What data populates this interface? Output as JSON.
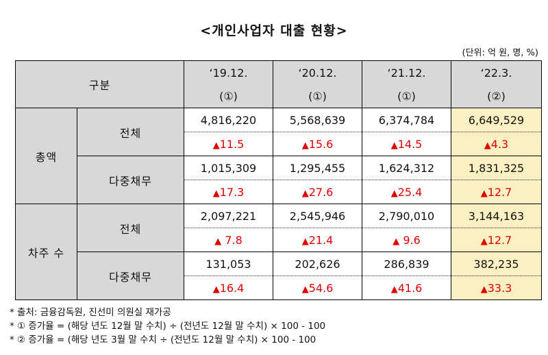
{
  "title": "<개인사업자 대출 현황>",
  "unit": "(단위: 억 원, 명, %)",
  "header": {
    "category": "구분",
    "columns": [
      {
        "year": "‘19.12.",
        "mark": "(①)"
      },
      {
        "year": "‘20.12.",
        "mark": "(①)"
      },
      {
        "year": "‘21.12.",
        "mark": "(①)"
      },
      {
        "year": "‘22.3.",
        "mark": "(②)"
      }
    ]
  },
  "groups": [
    {
      "label": "총액",
      "rows": [
        {
          "label": "전체",
          "values": [
            "4,816,220",
            "5,568,639",
            "6,374,784",
            "6,649,529"
          ],
          "rates": [
            "11.5",
            "15.6",
            "14.5",
            "4.3"
          ]
        },
        {
          "label": "다중채무",
          "values": [
            "1,015,309",
            "1,295,455",
            "1,624,312",
            "1,831,325"
          ],
          "rates": [
            "17.3",
            "27.6",
            "25.4",
            "12.7"
          ]
        }
      ]
    },
    {
      "label": "차주 수",
      "rows": [
        {
          "label": "전체",
          "values": [
            "2,097,221",
            "2,545,946",
            "2,790,010",
            "3,144,163"
          ],
          "rates": [
            " 7.8",
            "21.4",
            " 9.6",
            "12.7"
          ]
        },
        {
          "label": "다중채무",
          "values": [
            "131,053",
            "202,626",
            "286,839",
            "382,235"
          ],
          "rates": [
            "16.4",
            "54.6",
            "41.6",
            "33.3"
          ]
        }
      ]
    }
  ],
  "increase_symbol": "▲",
  "notes": [
    "* 출처: 금융감독원, 진선미 의원실 재가공",
    "* ① 증가율 = (해당 년도 12월 말 수치) ÷ (전년도 12월 말 수치) × 100 - 100",
    "* ② 증가율 = (해당 년도 3월 말 수치 ÷ (전년도 12월 말 수치) × 100 - 100"
  ],
  "colors": {
    "header_bg": "#d8d8d8",
    "highlight_bg": "#fbf0c1",
    "increase": "#e00000"
  }
}
